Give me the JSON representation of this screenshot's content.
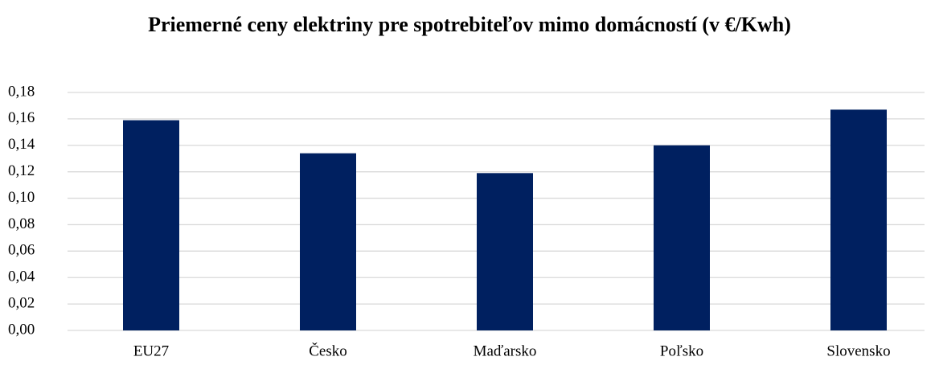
{
  "chart_data": {
    "type": "bar",
    "title": "Priemerné ceny elektriny pre spotrebiteľov mimo domácností (v €/Kwh)",
    "categories": [
      "EU27",
      "Česko",
      "Maďarsko",
      "Poľsko",
      "Slovensko"
    ],
    "values": [
      0.159,
      0.134,
      0.119,
      0.14,
      0.167
    ],
    "color": "#002060",
    "ylim": [
      0,
      0.18
    ],
    "yticks": [
      {
        "value": 0,
        "label": "0,00"
      },
      {
        "value": 0.02,
        "label": "0,02"
      },
      {
        "value": 0.04,
        "label": "0,04"
      },
      {
        "value": 0.06,
        "label": "0,06"
      },
      {
        "value": 0.08,
        "label": "0,08"
      },
      {
        "value": 0.1,
        "label": "0,10"
      },
      {
        "value": 0.12,
        "label": "0,12"
      },
      {
        "value": 0.14,
        "label": "0,14"
      },
      {
        "value": 0.16,
        "label": "0,16"
      },
      {
        "value": 0.18,
        "label": "0,18"
      }
    ],
    "grid": true
  }
}
